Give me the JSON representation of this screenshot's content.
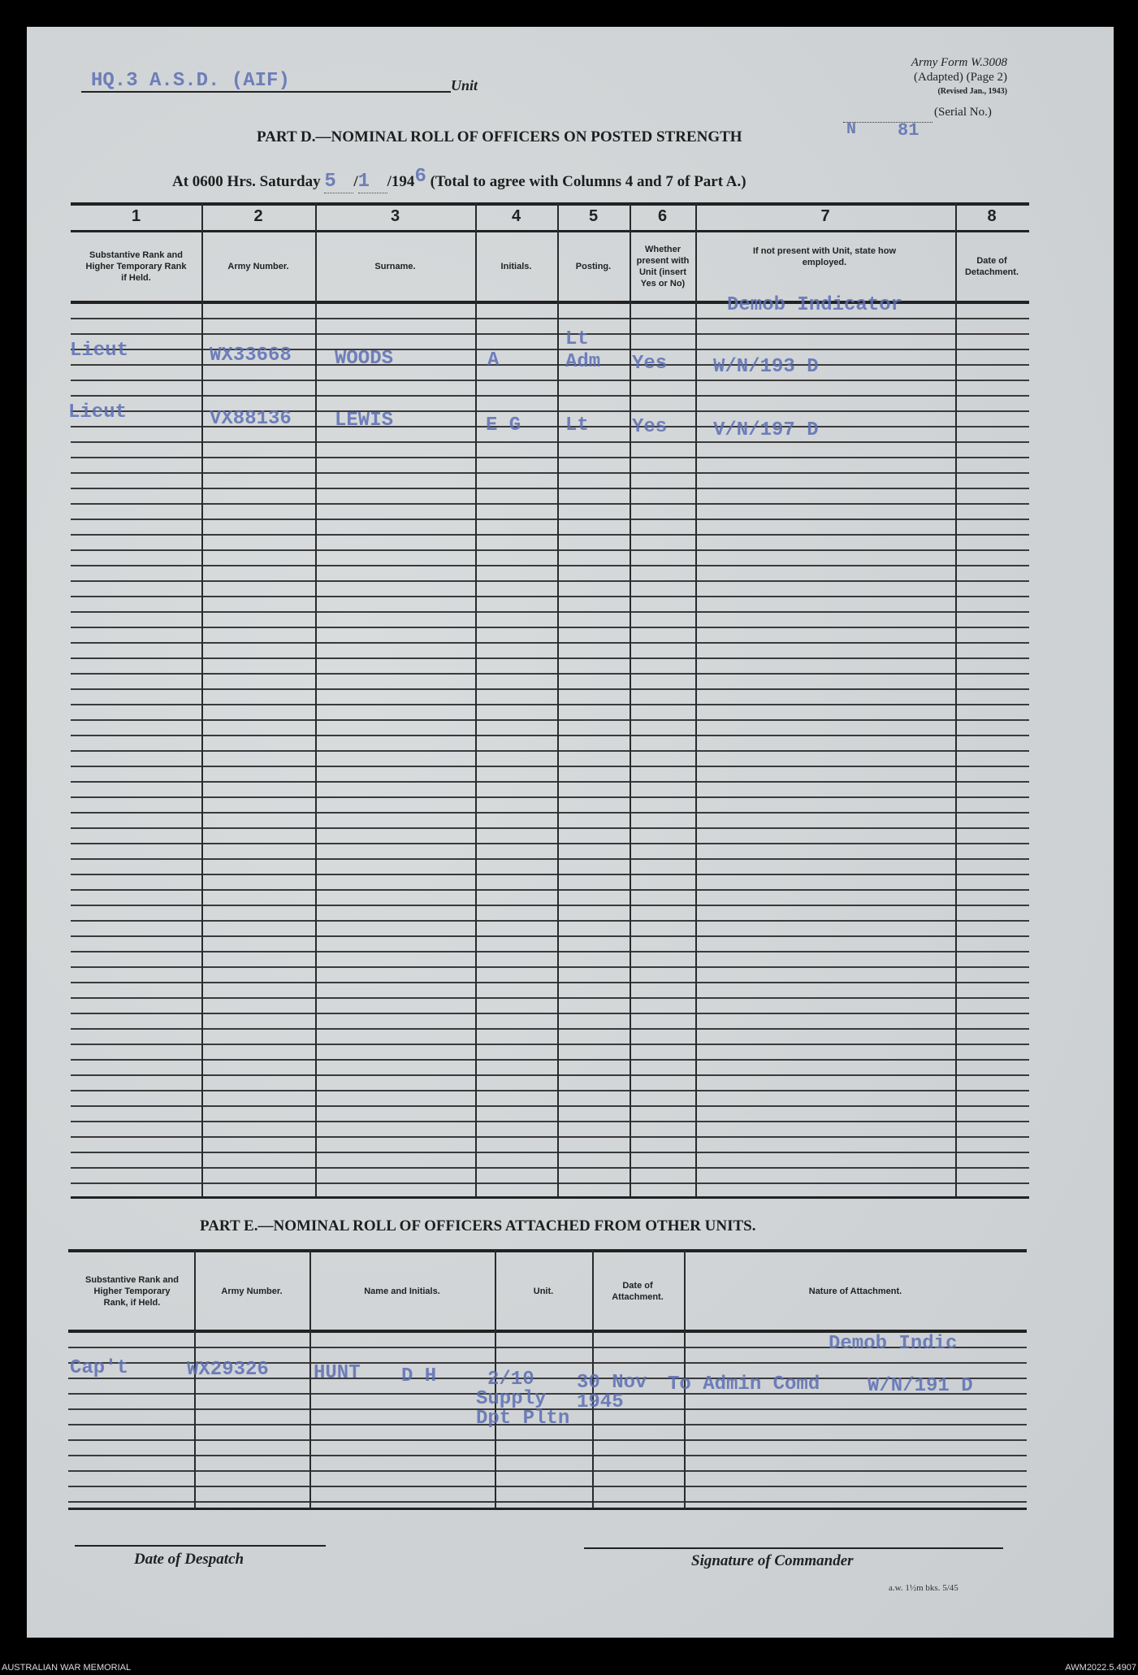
{
  "form_info": {
    "line1": "Army Form W.3008",
    "line2": "(Adapted) (Page 2)",
    "line3": "(Revised Jan., 1943)",
    "serial_label": "(Serial No.)",
    "serial_typed_a": "N",
    "serial_typed_b": "81"
  },
  "unit": {
    "typed": "HQ.3 A.S.D. (AIF)",
    "label": "Unit"
  },
  "part_d": {
    "title": "PART D.—NOMINAL ROLL OF OFFICERS ON POSTED STRENGTH",
    "date_prefix": "At 0600 Hrs. Saturday",
    "day": "5",
    "month": "1",
    "year_printed": "/194",
    "year_typed": "6",
    "date_suffix": "(Total to agree with Columns 4 and 7 of Part A.)",
    "column_numbers": [
      "1",
      "2",
      "3",
      "4",
      "5",
      "6",
      "7",
      "8"
    ],
    "headers": [
      "Substantive Rank and Higher Temporary Rank if Held.",
      "Army Number.",
      "Surname.",
      "Initials.",
      "Posting.",
      "Whether present with Unit (insert Yes or No)",
      "If not present with Unit, state how employed.",
      "Date of Detachment."
    ],
    "demob_note": "Demob Indicator",
    "rows": [
      {
        "rank": "Lieut",
        "army_number": "WX33668",
        "surname": "WOODS",
        "initials": "A",
        "posting_1": "Lt",
        "posting_2": "Adm",
        "present": "Yes",
        "employed": "W/N/193 D"
      },
      {
        "rank": "Lieut",
        "army_number": "VX88136",
        "surname": "LEWIS",
        "initials": "E G",
        "posting_1": "Lt",
        "posting_2": "",
        "present": "Yes",
        "employed": "V/N/197 D"
      }
    ]
  },
  "part_e": {
    "title": "PART E.—NOMINAL ROLL OF OFFICERS ATTACHED FROM OTHER UNITS.",
    "headers": [
      "Substantive Rank and Higher Temporary Rank, if Held.",
      "Army Number.",
      "Name and Initials.",
      "Unit.",
      "Date of Attachment.",
      "Nature of Attachment."
    ],
    "demob_note": "Demob Indic",
    "rows": [
      {
        "rank": "Cap't",
        "army_number": "WX29326",
        "name": "HUNT",
        "initials": "D H",
        "unit_1": "2/10",
        "unit_2": "Supply",
        "unit_3": "Dpt Pltn",
        "date_1": "30 Nov",
        "date_2": "1945",
        "nature": "To Admin Comd",
        "code": "W/N/191 D"
      }
    ]
  },
  "footer": {
    "date_of_despatch": "Date of Despatch",
    "signature": "Signature of Commander",
    "print_code": "a.w. 1½m bks. 5/45"
  },
  "archive": {
    "left": "AUSTRALIAN WAR MEMORIAL",
    "right": "AWM2022.5.4907"
  }
}
